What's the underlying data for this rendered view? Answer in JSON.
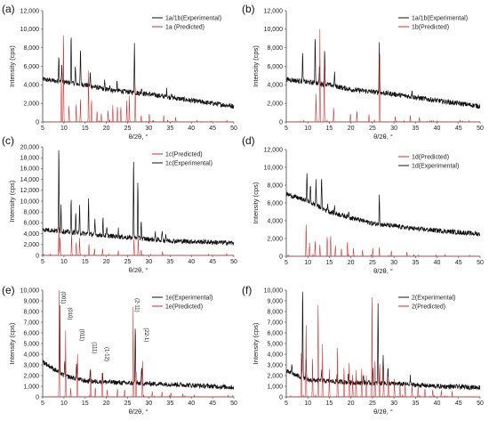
{
  "colors": {
    "experimental": "#111111",
    "predicted": "#d42a2a"
  },
  "chart_data": [
    {
      "panel": "(a)",
      "type": "line",
      "xlabel": "θ/2θ, °",
      "ylabel": "Intensity (cps)",
      "xlim": [
        5,
        50
      ],
      "ylim": [
        0,
        12000
      ],
      "xticks": [
        5,
        10,
        15,
        20,
        25,
        30,
        35,
        40,
        45,
        50
      ],
      "yticks": [
        0,
        2000,
        4000,
        6000,
        8000,
        10000,
        12000
      ],
      "legend_position": "top-right",
      "series": [
        {
          "name": "1a/1b(Experimental)",
          "role": "experimental",
          "baseline": [
            [
              5,
              4600
            ],
            [
              15,
              4000
            ],
            [
              20,
              3500
            ],
            [
              30,
              3000
            ],
            [
              40,
              2300
            ],
            [
              50,
              1700
            ]
          ],
          "peaks": [
            [
              8.8,
              3000
            ],
            [
              9.5,
              1800
            ],
            [
              11.7,
              5200
            ],
            [
              12.7,
              1800
            ],
            [
              13.9,
              3800
            ],
            [
              16.2,
              1500
            ],
            [
              19.6,
              800
            ],
            [
              20.8,
              700
            ],
            [
              22.5,
              900
            ],
            [
              26.6,
              5300
            ],
            [
              28.3,
              700
            ],
            [
              34.2,
              900
            ],
            [
              35.3,
              600
            ]
          ]
        },
        {
          "name": "1a (Predicted)",
          "role": "predicted",
          "peaks": [
            [
              9.4,
              4800
            ],
            [
              9.9,
              10000
            ],
            [
              11.2,
              1800
            ],
            [
              12.9,
              2000
            ],
            [
              13.9,
              2600
            ],
            [
              15.8,
              5500
            ],
            [
              16.5,
              2500
            ],
            [
              17.8,
              1200
            ],
            [
              18.8,
              900
            ],
            [
              20.4,
              1300
            ],
            [
              21.5,
              1800
            ],
            [
              22.6,
              1600
            ],
            [
              23.4,
              1700
            ],
            [
              24.8,
              2300
            ],
            [
              25.4,
              2800
            ],
            [
              26.8,
              4000
            ],
            [
              28.2,
              700
            ],
            [
              30.1,
              900
            ],
            [
              33.5,
              700
            ],
            [
              36.3,
              500
            ]
          ]
        }
      ]
    },
    {
      "panel": "(b)",
      "type": "line",
      "xlabel": "θ/2θ, °",
      "ylabel": "Intensity (cps)",
      "xlim": [
        5,
        50
      ],
      "ylim": [
        0,
        12000
      ],
      "xticks": [
        5,
        10,
        15,
        20,
        25,
        30,
        35,
        40,
        45,
        50
      ],
      "yticks": [
        0,
        2000,
        4000,
        6000,
        8000,
        10000,
        12000
      ],
      "legend_position": "top-right",
      "series": [
        {
          "name": "1a/1b(Experimental)",
          "role": "experimental",
          "baseline": [
            [
              5,
              4600
            ],
            [
              15,
              4000
            ],
            [
              20,
              3500
            ],
            [
              30,
              3000
            ],
            [
              40,
              2300
            ],
            [
              50,
              1700
            ]
          ],
          "peaks": [
            [
              8.8,
              3000
            ],
            [
              11.7,
              5200
            ],
            [
              12.7,
              1800
            ],
            [
              13.9,
              3800
            ],
            [
              16.2,
              1500
            ],
            [
              26.6,
              5300
            ],
            [
              34.2,
              900
            ]
          ]
        },
        {
          "name": "1b(Predicted)",
          "role": "predicted",
          "peaks": [
            [
              11.9,
              3000
            ],
            [
              12.8,
              10000
            ],
            [
              13.8,
              6800
            ],
            [
              16.0,
              1600
            ],
            [
              19.9,
              900
            ],
            [
              21.4,
              1200
            ],
            [
              24.2,
              800
            ],
            [
              26.7,
              7800
            ],
            [
              30.3,
              600
            ],
            [
              33.8,
              700
            ],
            [
              35.9,
              500
            ]
          ]
        }
      ]
    },
    {
      "panel": "(c)",
      "type": "line",
      "xlabel": "θ/2θ, °",
      "ylabel": "Intensity (cps)",
      "xlim": [
        5,
        50
      ],
      "ylim": [
        0,
        20000
      ],
      "xticks": [
        5,
        10,
        15,
        20,
        25,
        30,
        35,
        40,
        45,
        50
      ],
      "yticks": [
        0,
        2000,
        4000,
        6000,
        8000,
        10000,
        12000,
        14000,
        16000,
        18000,
        20000
      ],
      "legend_position": "top-right",
      "series": [
        {
          "name": "1c(Predicted)",
          "role": "predicted",
          "peaks": [
            [
              8.8,
              5500
            ],
            [
              9.1,
              3500
            ],
            [
              11.8,
              4000
            ],
            [
              12.9,
              2500
            ],
            [
              13.7,
              3200
            ],
            [
              15.9,
              2200
            ],
            [
              17.2,
              1300
            ],
            [
              19.1,
              1200
            ],
            [
              22.8,
              900
            ],
            [
              26.5,
              3200
            ],
            [
              27.5,
              3500
            ],
            [
              28.2,
              1000
            ],
            [
              33.2,
              700
            ]
          ]
        },
        {
          "name": "1c(Experimental)",
          "role": "experimental",
          "baseline": [
            [
              5,
              4800
            ],
            [
              15,
              4000
            ],
            [
              25,
              3300
            ],
            [
              35,
              2700
            ],
            [
              50,
              2300
            ]
          ],
          "peaks": [
            [
              8.8,
              15500
            ],
            [
              9.3,
              5000
            ],
            [
              11.7,
              6000
            ],
            [
              12.8,
              4000
            ],
            [
              13.7,
              5000
            ],
            [
              15.8,
              6800
            ],
            [
              17.3,
              2500
            ],
            [
              19.2,
              3000
            ],
            [
              20.1,
              1500
            ],
            [
              22.8,
              1400
            ],
            [
              26.4,
              15000
            ],
            [
              27.4,
              11000
            ],
            [
              28.2,
              3500
            ],
            [
              31.5,
              1200
            ],
            [
              33.1,
              1800
            ],
            [
              34.0,
              1200
            ]
          ]
        }
      ]
    },
    {
      "panel": "(d)",
      "type": "line",
      "xlabel": "θ/2θ, °",
      "ylabel": "Intensity (cps)",
      "xlim": [
        5,
        50
      ],
      "ylim": [
        0,
        12000
      ],
      "xticks": [
        5,
        10,
        15,
        20,
        25,
        30,
        35,
        40,
        45,
        50
      ],
      "yticks": [
        0,
        2000,
        4000,
        6000,
        8000,
        10000,
        12000
      ],
      "legend_position": "top-right",
      "series": [
        {
          "name": "1d(Predicted)",
          "role": "predicted",
          "peaks": [
            [
              9.6,
              3800
            ],
            [
              10.4,
              1500
            ],
            [
              11.7,
              1800
            ],
            [
              12.8,
              1300
            ],
            [
              14.5,
              2300
            ],
            [
              15.3,
              2400
            ],
            [
              16.4,
              1200
            ],
            [
              17.8,
              900
            ],
            [
              19.2,
              1700
            ],
            [
              20.6,
              900
            ],
            [
              22.7,
              700
            ],
            [
              25.1,
              900
            ],
            [
              26.6,
              1000
            ],
            [
              29.4,
              600
            ],
            [
              33.0,
              500
            ]
          ]
        },
        {
          "name": "1d(Experimental)",
          "role": "experimental",
          "baseline": [
            [
              5,
              7000
            ],
            [
              10,
              6200
            ],
            [
              15,
              5000
            ],
            [
              25,
              3700
            ],
            [
              35,
              3100
            ],
            [
              50,
              2500
            ]
          ],
          "peaks": [
            [
              9.8,
              3300
            ],
            [
              10.6,
              2000
            ],
            [
              11.9,
              2800
            ],
            [
              13.2,
              3500
            ],
            [
              14.6,
              900
            ],
            [
              16.2,
              800
            ],
            [
              19.5,
              700
            ],
            [
              26.6,
              3500
            ]
          ]
        }
      ]
    },
    {
      "panel": "(e)",
      "type": "line",
      "xlabel": "θ/2θ, °",
      "ylabel": "Intensity (cps)",
      "xlim": [
        5,
        50
      ],
      "ylim": [
        0,
        10000
      ],
      "xticks": [
        5,
        10,
        15,
        20,
        25,
        30,
        35,
        40,
        45,
        50
      ],
      "yticks": [
        0,
        1000,
        2000,
        3000,
        4000,
        5000,
        6000,
        7000,
        8000,
        9000,
        10000
      ],
      "legend_position": "top-right",
      "annotations": [
        {
          "text": "(001)",
          "x": 8.9
        },
        {
          "text": "(010)",
          "x": 10.4
        },
        {
          "text": "(011)",
          "x": 13.3
        },
        {
          "text": "(111)",
          "x": 16.2
        },
        {
          "text": "(1-12)",
          "x": 19.1
        },
        {
          "text": "(2-11)",
          "x": 26.2
        },
        {
          "text": "(22-1)",
          "x": 28.4
        }
      ],
      "series": [
        {
          "name": "1e(Experimental)",
          "role": "experimental",
          "baseline": [
            [
              5,
              3300
            ],
            [
              10,
              2000
            ],
            [
              15,
              1500
            ],
            [
              25,
              1300
            ],
            [
              35,
              1200
            ],
            [
              50,
              900
            ]
          ],
          "peaks": [
            [
              9.0,
              6500
            ],
            [
              10.2,
              1500
            ],
            [
              13.0,
              1400
            ],
            [
              16.2,
              1300
            ],
            [
              19.1,
              900
            ],
            [
              26.8,
              5300
            ],
            [
              28.3,
              1500
            ]
          ]
        },
        {
          "name": "1e(Predicted)",
          "role": "predicted",
          "peaks": [
            [
              8.9,
              10000
            ],
            [
              10.4,
              6200
            ],
            [
              11.6,
              800
            ],
            [
              13.2,
              4300
            ],
            [
              16.3,
              2800
            ],
            [
              17.4,
              900
            ],
            [
              19.0,
              2300
            ],
            [
              20.2,
              700
            ],
            [
              22.6,
              800
            ],
            [
              24.3,
              700
            ],
            [
              26.3,
              8400
            ],
            [
              27.0,
              2500
            ],
            [
              28.5,
              3600
            ],
            [
              30.8,
              500
            ],
            [
              33.1,
              500
            ],
            [
              35.2,
              400
            ],
            [
              38.0,
              300
            ]
          ]
        }
      ]
    },
    {
      "panel": "(f)",
      "type": "line",
      "xlabel": "θ/2θ, °",
      "ylabel": "Intensity (cps)",
      "xlim": [
        5,
        50
      ],
      "ylim": [
        0,
        10000
      ],
      "xticks": [
        5,
        10,
        15,
        20,
        25,
        30,
        35,
        40,
        45,
        50
      ],
      "yticks": [
        0,
        1000,
        2000,
        3000,
        4000,
        5000,
        6000,
        7000,
        8000,
        9000,
        10000
      ],
      "legend_position": "top-right",
      "series": [
        {
          "name": "2(Experimental)",
          "role": "experimental",
          "baseline": [
            [
              5,
              2400
            ],
            [
              10,
              1600
            ],
            [
              20,
              1350
            ],
            [
              30,
              1250
            ],
            [
              40,
              1000
            ],
            [
              50,
              900
            ]
          ],
          "peaks": [
            [
              6.3,
              900
            ],
            [
              8.8,
              8700
            ],
            [
              9.6,
              2000
            ],
            [
              13.2,
              900
            ],
            [
              16.8,
              700
            ],
            [
              19.4,
              800
            ],
            [
              22.9,
              900
            ],
            [
              25.1,
              1200
            ],
            [
              26.3,
              7500
            ],
            [
              27.5,
              2800
            ],
            [
              28.6,
              1500
            ],
            [
              33.8,
              700
            ]
          ]
        },
        {
          "name": "2(Predicted)",
          "role": "predicted",
          "peaks": [
            [
              8.5,
              4400
            ],
            [
              9.6,
              7100
            ],
            [
              11.1,
              3800
            ],
            [
              12.4,
              9200
            ],
            [
              13.4,
              4900
            ],
            [
              15.0,
              2600
            ],
            [
              16.9,
              4900
            ],
            [
              18.4,
              2900
            ],
            [
              19.6,
              3400
            ],
            [
              20.4,
              2200
            ],
            [
              21.2,
              2500
            ],
            [
              22.5,
              2800
            ],
            [
              23.6,
              2000
            ],
            [
              24.9,
              10000
            ],
            [
              25.6,
              3600
            ],
            [
              26.7,
              3300
            ],
            [
              27.6,
              2900
            ],
            [
              28.7,
              1900
            ],
            [
              30.1,
              1800
            ],
            [
              31.4,
              1200
            ],
            [
              32.6,
              1300
            ],
            [
              34.2,
              1100
            ],
            [
              35.6,
              1000
            ],
            [
              37.2,
              800
            ],
            [
              39.0,
              700
            ],
            [
              41.0,
              600
            ],
            [
              43.5,
              400
            ]
          ]
        }
      ]
    }
  ]
}
